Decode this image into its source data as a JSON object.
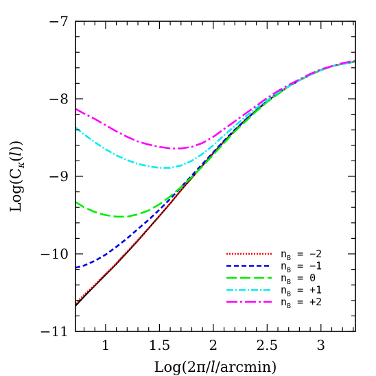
{
  "chart_data": {
    "type": "line",
    "xlabel": "Log(2π/l/arcmin)",
    "ylabel": "Log(C_κ(l))",
    "xlim": [
      0.72,
      3.32
    ],
    "ylim": [
      -11,
      -7
    ],
    "grid": false,
    "legend_position": "bottom-right",
    "xticks": [
      1,
      1.5,
      2,
      2.5,
      3
    ],
    "xtick_labels": [
      "1",
      "1.5",
      "2",
      "2.5",
      "3"
    ],
    "yticks": [
      -7,
      -8,
      -9,
      -10,
      -11
    ],
    "ytick_labels": [
      "−7",
      "−8",
      "−9",
      "−10",
      "−11"
    ],
    "series": [
      {
        "name": "n_B = −2",
        "legend_main": "n",
        "legend_sub": "B",
        "legend_rest": " = −2",
        "color": "#ff0000",
        "dash": "2,2",
        "x": [
          0.72,
          0.8,
          0.9,
          1.0,
          1.1,
          1.2,
          1.3,
          1.4,
          1.5,
          1.6,
          1.7,
          1.8,
          1.9,
          2.0,
          2.1,
          2.2,
          2.3,
          2.4,
          2.5,
          2.6,
          2.7,
          2.8,
          2.9,
          3.0,
          3.1,
          3.2,
          3.32
        ],
        "y": [
          -10.64,
          -10.53,
          -10.4,
          -10.26,
          -10.12,
          -9.97,
          -9.82,
          -9.67,
          -9.51,
          -9.35,
          -9.18,
          -9.02,
          -8.86,
          -8.7,
          -8.55,
          -8.41,
          -8.27,
          -8.15,
          -8.03,
          -7.93,
          -7.84,
          -7.76,
          -7.69,
          -7.63,
          -7.58,
          -7.55,
          -7.52
        ]
      },
      {
        "name": "n_B = −1",
        "legend_main": "n",
        "legend_sub": "B",
        "legend_rest": " = −1",
        "color": "#0000dd",
        "dash": "7,4",
        "x": [
          0.72,
          0.8,
          0.9,
          1.0,
          1.1,
          1.2,
          1.3,
          1.4,
          1.5,
          1.6,
          1.7,
          1.8,
          1.9,
          2.0,
          2.1,
          2.2,
          2.3,
          2.4,
          2.5,
          2.6,
          2.7,
          2.8,
          2.9,
          3.0,
          3.1,
          3.2,
          3.32
        ],
        "y": [
          -10.18,
          -10.15,
          -10.09,
          -10.01,
          -9.91,
          -9.8,
          -9.68,
          -9.56,
          -9.43,
          -9.29,
          -9.14,
          -8.99,
          -8.84,
          -8.69,
          -8.54,
          -8.4,
          -8.27,
          -8.15,
          -8.03,
          -7.93,
          -7.84,
          -7.76,
          -7.69,
          -7.63,
          -7.58,
          -7.55,
          -7.52
        ]
      },
      {
        "name": "n_B = 0",
        "legend_main": "n",
        "legend_sub": "B",
        "legend_rest": " = 0",
        "color": "#00ee00",
        "dash": "15,5",
        "x": [
          0.72,
          0.8,
          0.9,
          1.0,
          1.1,
          1.2,
          1.3,
          1.4,
          1.5,
          1.6,
          1.7,
          1.8,
          1.9,
          2.0,
          2.1,
          2.2,
          2.3,
          2.4,
          2.5,
          2.6,
          2.7,
          2.8,
          2.9,
          3.0,
          3.1,
          3.2,
          3.32
        ],
        "y": [
          -9.33,
          -9.4,
          -9.46,
          -9.5,
          -9.52,
          -9.52,
          -9.49,
          -9.44,
          -9.36,
          -9.26,
          -9.14,
          -9.01,
          -8.87,
          -8.72,
          -8.57,
          -8.42,
          -8.29,
          -8.16,
          -8.04,
          -7.94,
          -7.84,
          -7.76,
          -7.69,
          -7.63,
          -7.58,
          -7.55,
          -7.52
        ]
      },
      {
        "name": "n_B = +1",
        "legend_main": "n",
        "legend_sub": "B",
        "legend_rest": " = +1",
        "color": "#00eeee",
        "dash": "10,3,2,3",
        "x": [
          0.72,
          0.8,
          0.9,
          1.0,
          1.1,
          1.2,
          1.3,
          1.4,
          1.5,
          1.6,
          1.7,
          1.8,
          1.9,
          2.0,
          2.1,
          2.2,
          2.3,
          2.4,
          2.5,
          2.6,
          2.7,
          2.8,
          2.9,
          3.0,
          3.1,
          3.2,
          3.32
        ],
        "y": [
          -8.37,
          -8.46,
          -8.56,
          -8.65,
          -8.73,
          -8.79,
          -8.84,
          -8.87,
          -8.89,
          -8.89,
          -8.86,
          -8.8,
          -8.71,
          -8.6,
          -8.47,
          -8.35,
          -8.23,
          -8.12,
          -8.02,
          -7.92,
          -7.84,
          -7.76,
          -7.69,
          -7.63,
          -7.58,
          -7.55,
          -7.52
        ]
      },
      {
        "name": "n_B = +2",
        "legend_main": "n",
        "legend_sub": "B",
        "legend_rest": " = +2",
        "color": "#ff00ff",
        "dash": "16,4,3,4",
        "x": [
          0.72,
          0.8,
          0.9,
          1.0,
          1.1,
          1.2,
          1.3,
          1.4,
          1.5,
          1.6,
          1.7,
          1.8,
          1.9,
          2.0,
          2.1,
          2.2,
          2.3,
          2.4,
          2.5,
          2.6,
          2.7,
          2.8,
          2.9,
          3.0,
          3.1,
          3.2,
          3.32
        ],
        "y": [
          -8.13,
          -8.19,
          -8.26,
          -8.34,
          -8.42,
          -8.49,
          -8.55,
          -8.59,
          -8.62,
          -8.64,
          -8.64,
          -8.62,
          -8.57,
          -8.49,
          -8.39,
          -8.29,
          -8.19,
          -8.09,
          -7.99,
          -7.9,
          -7.82,
          -7.75,
          -7.68,
          -7.62,
          -7.58,
          -7.54,
          -7.51
        ]
      },
      {
        "name": "",
        "color": "#000000",
        "dash": "",
        "x": [
          0.72,
          0.8,
          0.9,
          1.0,
          1.1,
          1.2,
          1.3,
          1.4,
          1.5,
          1.6,
          1.7,
          1.8,
          1.9,
          2.0,
          2.1,
          2.2,
          2.3,
          2.4,
          2.5,
          2.6,
          2.7,
          2.8,
          2.9,
          3.0,
          3.1,
          3.2,
          3.32
        ],
        "y": [
          -10.67,
          -10.55,
          -10.41,
          -10.27,
          -10.13,
          -9.98,
          -9.83,
          -9.67,
          -9.51,
          -9.35,
          -9.18,
          -9.02,
          -8.86,
          -8.7,
          -8.55,
          -8.41,
          -8.27,
          -8.15,
          -8.03,
          -7.93,
          -7.84,
          -7.76,
          -7.69,
          -7.63,
          -7.58,
          -7.55,
          -7.52
        ]
      }
    ]
  }
}
